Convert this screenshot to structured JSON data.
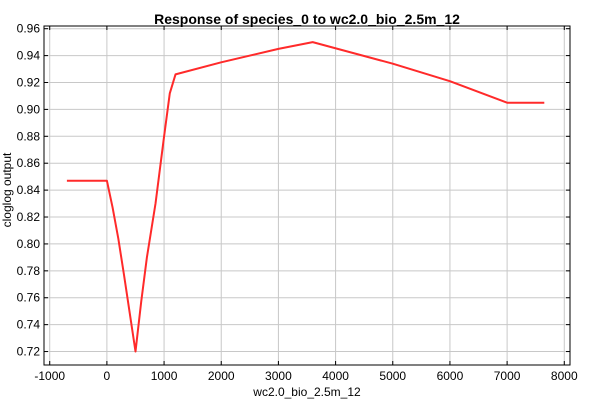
{
  "chart_data": {
    "type": "line",
    "title": "Response of species_0 to wc2.0_bio_2.5m_12",
    "xlabel": "wc2.0_bio_2.5m_12",
    "ylabel": "cloglog output",
    "xlim": [
      -1100,
      8100
    ],
    "ylim": [
      0.71,
      0.962
    ],
    "x_ticks": [
      -1000,
      0,
      1000,
      2000,
      3000,
      4000,
      5000,
      6000,
      7000,
      8000
    ],
    "y_ticks": [
      0.72,
      0.74,
      0.76,
      0.78,
      0.8,
      0.82,
      0.84,
      0.86,
      0.88,
      0.9,
      0.92,
      0.94,
      0.96
    ],
    "grid": true,
    "series": [
      {
        "color": "#ff2a2a",
        "points": [
          [
            -700,
            0.847
          ],
          [
            0,
            0.847
          ],
          [
            100,
            0.827
          ],
          [
            200,
            0.804
          ],
          [
            300,
            0.777
          ],
          [
            500,
            0.72
          ],
          [
            600,
            0.757
          ],
          [
            700,
            0.79
          ],
          [
            850,
            0.83
          ],
          [
            1000,
            0.88
          ],
          [
            1100,
            0.912
          ],
          [
            1200,
            0.926
          ],
          [
            2000,
            0.935
          ],
          [
            3000,
            0.945
          ],
          [
            3600,
            0.95
          ],
          [
            5000,
            0.934
          ],
          [
            6000,
            0.921
          ],
          [
            7000,
            0.905
          ],
          [
            7650,
            0.905
          ]
        ]
      }
    ]
  }
}
